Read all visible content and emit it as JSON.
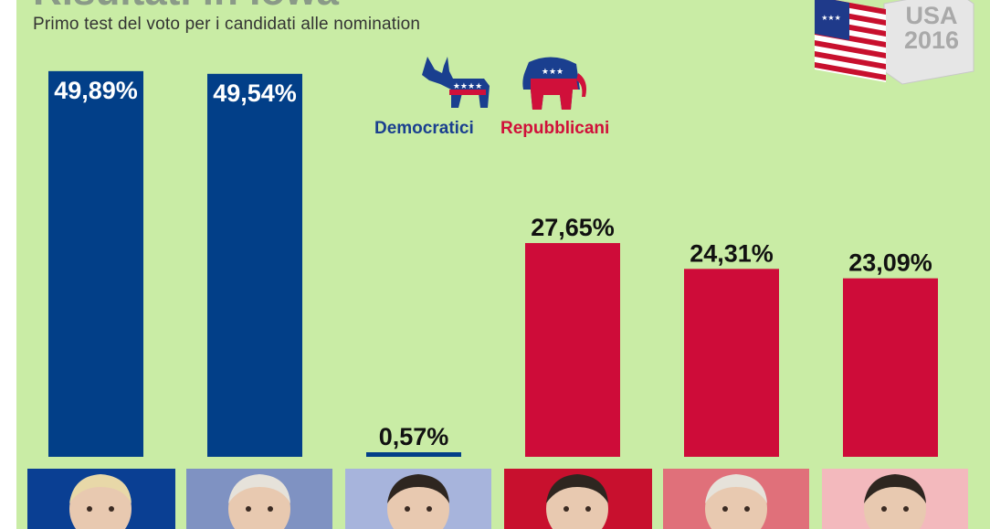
{
  "header": {
    "title": "Risultati in Iowa",
    "subtitle": "Primo test del voto per i candidati alle nomination"
  },
  "badge": {
    "label": "USA\n2016",
    "flag_icon": "us-flag-icon"
  },
  "legend": {
    "democrats_label": "Democratici",
    "republicans_label": "Repubblicani",
    "democrats_icon": "donkey-icon",
    "republicans_icon": "elephant-icon"
  },
  "colors": {
    "background": "#c9eca5",
    "democrats": "#023f88",
    "republicans": "#ce0c39"
  },
  "chart_data": {
    "type": "bar",
    "title": "Risultati in Iowa",
    "subtitle": "Primo test del voto per i candidati alle nomination",
    "categories": [
      "",
      "",
      "",
      "",
      "",
      ""
    ],
    "values": [
      49.89,
      49.54,
      0.57,
      27.65,
      24.31,
      23.09
    ],
    "value_labels": [
      "49,89%",
      "49,54%",
      "0,57%",
      "27,65%",
      "24,31%",
      "23,09%"
    ],
    "series": [
      {
        "name": "Democratici",
        "indices": [
          0,
          1,
          2
        ]
      },
      {
        "name": "Repubblicani",
        "indices": [
          3,
          4,
          5
        ]
      }
    ],
    "ylim": [
      0,
      52
    ],
    "grid": false,
    "legend_position": "top-center"
  }
}
